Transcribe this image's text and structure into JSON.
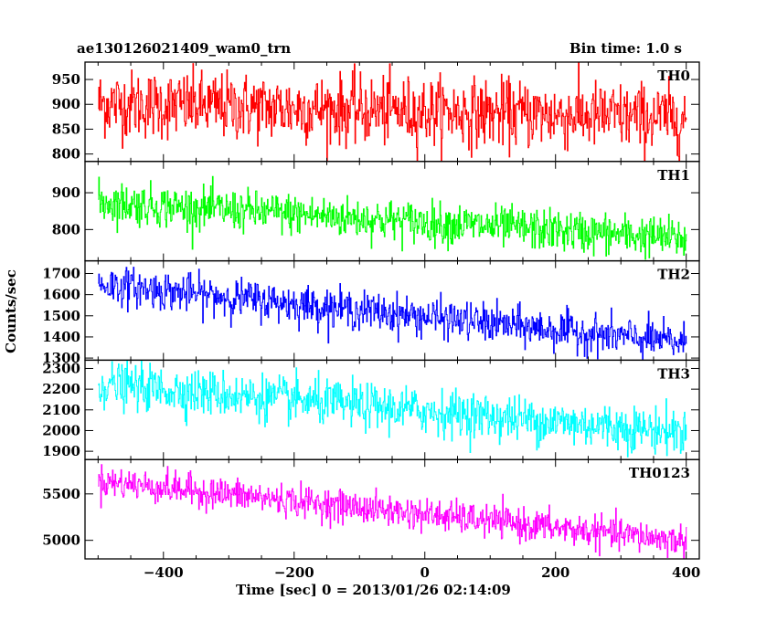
{
  "header": {
    "title": "ae130126021409_wam0_trn",
    "bin_time": "Bin time: 1.0 s"
  },
  "axes": {
    "xlabel": "Time [sec] 0 = 2013/01/26 02:14:09",
    "ylabel": "Counts/sec"
  },
  "chart_data": {
    "type": "line",
    "layout": "stacked-panels",
    "xlabel": "Time [sec] 0 = 2013/01/26 02:14:09",
    "ylabel": "Counts/sec",
    "xlim": [
      -520,
      420
    ],
    "xticks": [
      -400,
      -200,
      0,
      200,
      400
    ],
    "x_start": -500,
    "x_end": 400,
    "bin": 1.0,
    "grid": false,
    "legend": "none",
    "panels": [
      {
        "name": "TH0",
        "color": "#ff0000",
        "ylim": [
          785,
          985
        ],
        "yticks": [
          800,
          850,
          900,
          950
        ],
        "trend_start": 902,
        "trend_end": 872,
        "noise_sd": 34
      },
      {
        "name": "TH1",
        "color": "#00ff00",
        "ylim": [
          715,
          985
        ],
        "yticks": [
          800,
          900
        ],
        "trend_start": 875,
        "trend_end": 775,
        "noise_sd": 28
      },
      {
        "name": "TH2",
        "color": "#0000ff",
        "ylim": [
          1290,
          1760
        ],
        "yticks": [
          1300,
          1400,
          1500,
          1600,
          1700
        ],
        "trend_start": 1650,
        "trend_end": 1370,
        "noise_sd": 45
      },
      {
        "name": "TH3",
        "color": "#00ffff",
        "ylim": [
          1860,
          2340
        ],
        "yticks": [
          1900,
          2000,
          2100,
          2200,
          2300
        ],
        "trend_start": 2225,
        "trend_end": 1990,
        "noise_sd": 55
      },
      {
        "name": "TH0123",
        "color": "#ff00ff",
        "ylim": [
          4800,
          5870
        ],
        "yticks": [
          5000,
          5500
        ],
        "trend_start": 5640,
        "trend_end": 4990,
        "noise_sd": 85
      }
    ]
  }
}
